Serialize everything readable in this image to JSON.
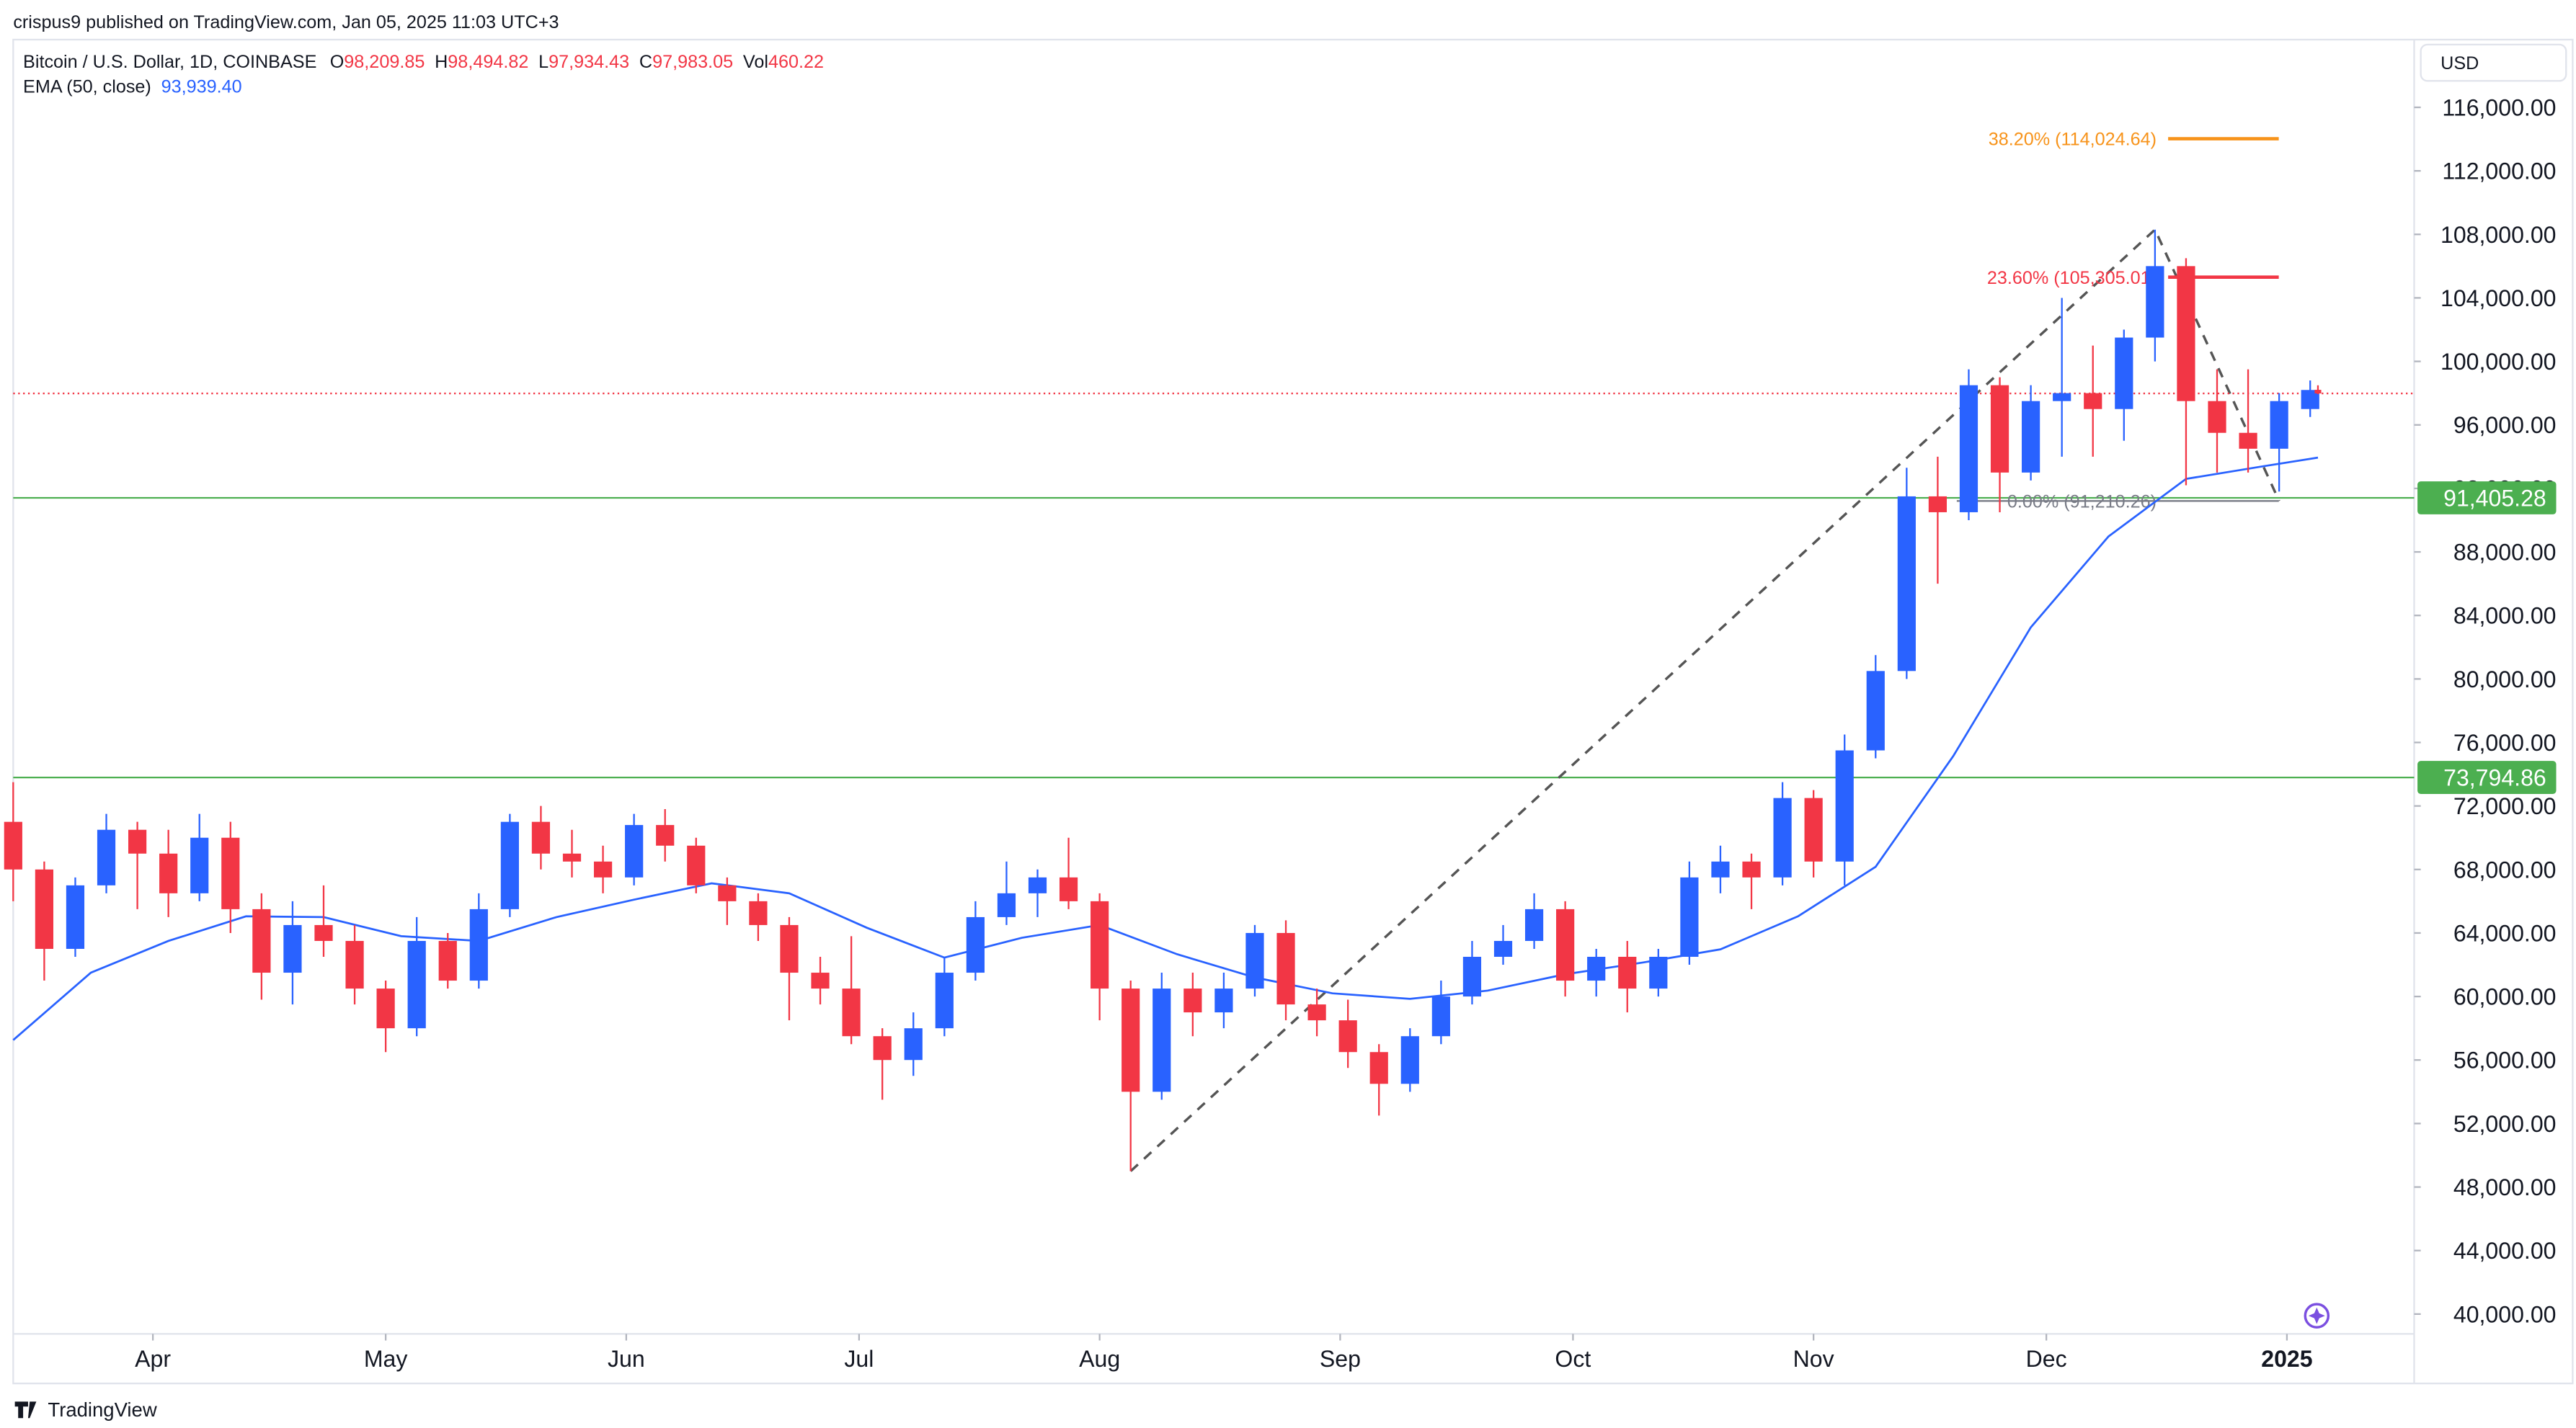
{
  "header": {
    "published": "crispus9 published on TradingView.com, Jan 05, 2025 11:03 UTC+3",
    "symbol": "Bitcoin / U.S. Dollar, 1D, COINBASE",
    "ohlc": [
      {
        "label": "O",
        "value": "98,209.85"
      },
      {
        "label": "H",
        "value": "98,494.82"
      },
      {
        "label": "L",
        "value": "97,934.43"
      },
      {
        "label": "C",
        "value": "97,983.05"
      },
      {
        "label": "Vol",
        "value": "460.22"
      }
    ],
    "ema_value": "93,939.40",
    "currency": "USD",
    "footer": "TradingView"
  },
  "chart_data": {
    "type": "candlestick",
    "up_color": "#2962ff",
    "down_color": "#f23645",
    "x": [
      0,
      4,
      8,
      12,
      16,
      20,
      24,
      28,
      32,
      36,
      40,
      44,
      48,
      52,
      56,
      60,
      64,
      68,
      72,
      76,
      80,
      84,
      88,
      92,
      96,
      100,
      104,
      108,
      112,
      116,
      120,
      124,
      128,
      132,
      136,
      140,
      144,
      148,
      152,
      156,
      160,
      164,
      168,
      172,
      176,
      180,
      184,
      188,
      192,
      196,
      200,
      204,
      208,
      212,
      216,
      220,
      224,
      228,
      232,
      236,
      240,
      244,
      248,
      252,
      256,
      260,
      264,
      268,
      272,
      276,
      280,
      284,
      288,
      292,
      296,
      297
    ],
    "open": [
      71000,
      68000,
      63000,
      67000,
      70500,
      69000,
      66500,
      70000,
      65500,
      61500,
      64500,
      63500,
      60500,
      58000,
      63500,
      61000,
      65500,
      71000,
      69000,
      68500,
      67500,
      70800,
      69500,
      67000,
      66000,
      64500,
      61500,
      60500,
      57500,
      56000,
      58000,
      61500,
      65000,
      66500,
      67500,
      66000,
      60500,
      54000,
      60500,
      59000,
      60500,
      64000,
      59500,
      58500,
      56500,
      54500,
      57500,
      60000,
      62500,
      63500,
      65500,
      61000,
      62500,
      60500,
      62500,
      67500,
      68500,
      67500,
      72500,
      68500,
      75500,
      80500,
      91500,
      90500,
      98500,
      93000,
      97500,
      98000,
      97000,
      101500,
      106000,
      97500,
      95500,
      94500,
      97000,
      98209.85
    ],
    "high": [
      73500,
      68500,
      67500,
      71500,
      71000,
      70500,
      71500,
      71000,
      66500,
      66000,
      67000,
      64500,
      61000,
      65000,
      64000,
      66500,
      71500,
      72000,
      70500,
      69500,
      71500,
      71800,
      70000,
      67500,
      66500,
      65000,
      62500,
      63800,
      58000,
      59000,
      62500,
      66000,
      68500,
      68000,
      70000,
      66500,
      61000,
      61500,
      61500,
      61500,
      64500,
      64800,
      60500,
      59800,
      57000,
      58000,
      61000,
      63500,
      64500,
      66500,
      66000,
      63000,
      63500,
      63000,
      68500,
      69500,
      69000,
      73500,
      73000,
      76500,
      81500,
      93300,
      94000,
      99500,
      99000,
      98500,
      104000,
      101000,
      102000,
      108300,
      106500,
      99500,
      99500,
      98000,
      98800,
      98494.82
    ],
    "low": [
      66000,
      61000,
      62500,
      66500,
      65500,
      65000,
      66000,
      64000,
      59800,
      59500,
      62500,
      59500,
      56500,
      57500,
      60500,
      60500,
      65000,
      68000,
      67500,
      66500,
      67000,
      68500,
      66500,
      64500,
      63500,
      58500,
      59500,
      57000,
      53500,
      55000,
      57500,
      61000,
      64500,
      65000,
      65500,
      58500,
      49000,
      53500,
      57500,
      58000,
      60000,
      58500,
      57500,
      55500,
      52500,
      54000,
      57000,
      59500,
      62000,
      63000,
      60000,
      60000,
      59000,
      60000,
      62000,
      66500,
      65500,
      67000,
      67500,
      67000,
      75000,
      80000,
      86000,
      90000,
      90500,
      92500,
      94000,
      94000,
      95000,
      100000,
      92200,
      93000,
      93000,
      91800,
      96500,
      97934.43
    ],
    "close": [
      68000,
      63000,
      67000,
      70500,
      69000,
      66500,
      70000,
      65500,
      61500,
      64500,
      63500,
      60500,
      58000,
      63500,
      61000,
      65500,
      71000,
      69000,
      68500,
      67500,
      70800,
      69500,
      67000,
      66000,
      64500,
      61500,
      60500,
      57500,
      56000,
      58000,
      61500,
      65000,
      66500,
      67500,
      66000,
      60500,
      54000,
      60500,
      59000,
      60500,
      64000,
      59500,
      58500,
      56500,
      54500,
      57500,
      60000,
      62500,
      63500,
      65500,
      61000,
      62500,
      60500,
      62500,
      67500,
      68500,
      67500,
      72500,
      68500,
      75500,
      80500,
      91500,
      90500,
      98500,
      93000,
      97500,
      98000,
      97000,
      101500,
      106000,
      97500,
      95500,
      94500,
      97500,
      98200,
      97983.05
    ],
    "ema": {
      "name": "EMA (50, close)",
      "color": "#2962ff",
      "x": [
        0,
        10,
        20,
        30,
        40,
        50,
        60,
        70,
        80,
        90,
        100,
        110,
        120,
        130,
        140,
        150,
        160,
        170,
        180,
        190,
        200,
        210,
        220,
        230,
        240,
        250,
        260,
        270,
        280,
        290,
        297
      ],
      "values": [
        57255,
        61500,
        63500,
        65050,
        65000,
        63800,
        63500,
        65000,
        66100,
        67130,
        66500,
        64330,
        62450,
        63700,
        64500,
        62660,
        61200,
        60200,
        59850,
        60370,
        61400,
        62140,
        62970,
        65050,
        68170,
        75140,
        83250,
        88970,
        92600,
        93400,
        93939.4
      ]
    },
    "trend_line": {
      "x": [
        144,
        276,
        292
      ],
      "values": [
        49000,
        108300,
        91210.26
      ]
    },
    "fib_levels": [
      {
        "label": "38.20% (114,024.64)",
        "value": 114024.64,
        "color": "#f7931a"
      },
      {
        "label": "23.60% (105,305.01)",
        "value": 105305.01,
        "color": "#f23645"
      },
      {
        "label": "0.00% (91,210.26)",
        "value": 91210.26,
        "color": "#787b86"
      }
    ],
    "levels": [
      {
        "value": 73794.86,
        "label": "73,794.86",
        "color": "#4caf50"
      },
      {
        "value": 91405.28,
        "label": "91,405.28",
        "color": "#4caf50"
      }
    ],
    "xlim": [
      0,
      309.4
    ],
    "ylim": [
      38750,
      119850
    ],
    "xticks": [
      {
        "value": 18,
        "label": "Apr"
      },
      {
        "value": 48,
        "label": "May"
      },
      {
        "value": 79,
        "label": "Jun"
      },
      {
        "value": 109,
        "label": "Jul"
      },
      {
        "value": 140,
        "label": "Aug"
      },
      {
        "value": 171,
        "label": "Sep"
      },
      {
        "value": 201,
        "label": "Oct"
      },
      {
        "value": 232,
        "label": "Nov"
      },
      {
        "value": 262,
        "label": "Dec"
      },
      {
        "value": 293,
        "label": "2025"
      }
    ],
    "yticks": [
      {
        "value": 40000,
        "label": "40,000.00"
      },
      {
        "value": 44000,
        "label": "44,000.00"
      },
      {
        "value": 48000,
        "label": "48,000.00"
      },
      {
        "value": 52000,
        "label": "52,000.00"
      },
      {
        "value": 56000,
        "label": "56,000.00"
      },
      {
        "value": 60000,
        "label": "60,000.00"
      },
      {
        "value": 64000,
        "label": "64,000.00"
      },
      {
        "value": 68000,
        "label": "68,000.00"
      },
      {
        "value": 72000,
        "label": "72,000.00"
      },
      {
        "value": 76000,
        "label": "76,000.00"
      },
      {
        "value": 80000,
        "label": "80,000.00"
      },
      {
        "value": 84000,
        "label": "84,000.00"
      },
      {
        "value": 88000,
        "label": "88,000.00"
      },
      {
        "value": 92000,
        "label": "92,000.00"
      },
      {
        "value": 96000,
        "label": "96,000.00"
      },
      {
        "value": 100000,
        "label": "100,000.00"
      },
      {
        "value": 104000,
        "label": "104,000.00"
      },
      {
        "value": 108000,
        "label": "108,000.00"
      },
      {
        "value": 112000,
        "label": "112,000.00"
      },
      {
        "value": 116000,
        "label": "116,000.00"
      }
    ]
  }
}
